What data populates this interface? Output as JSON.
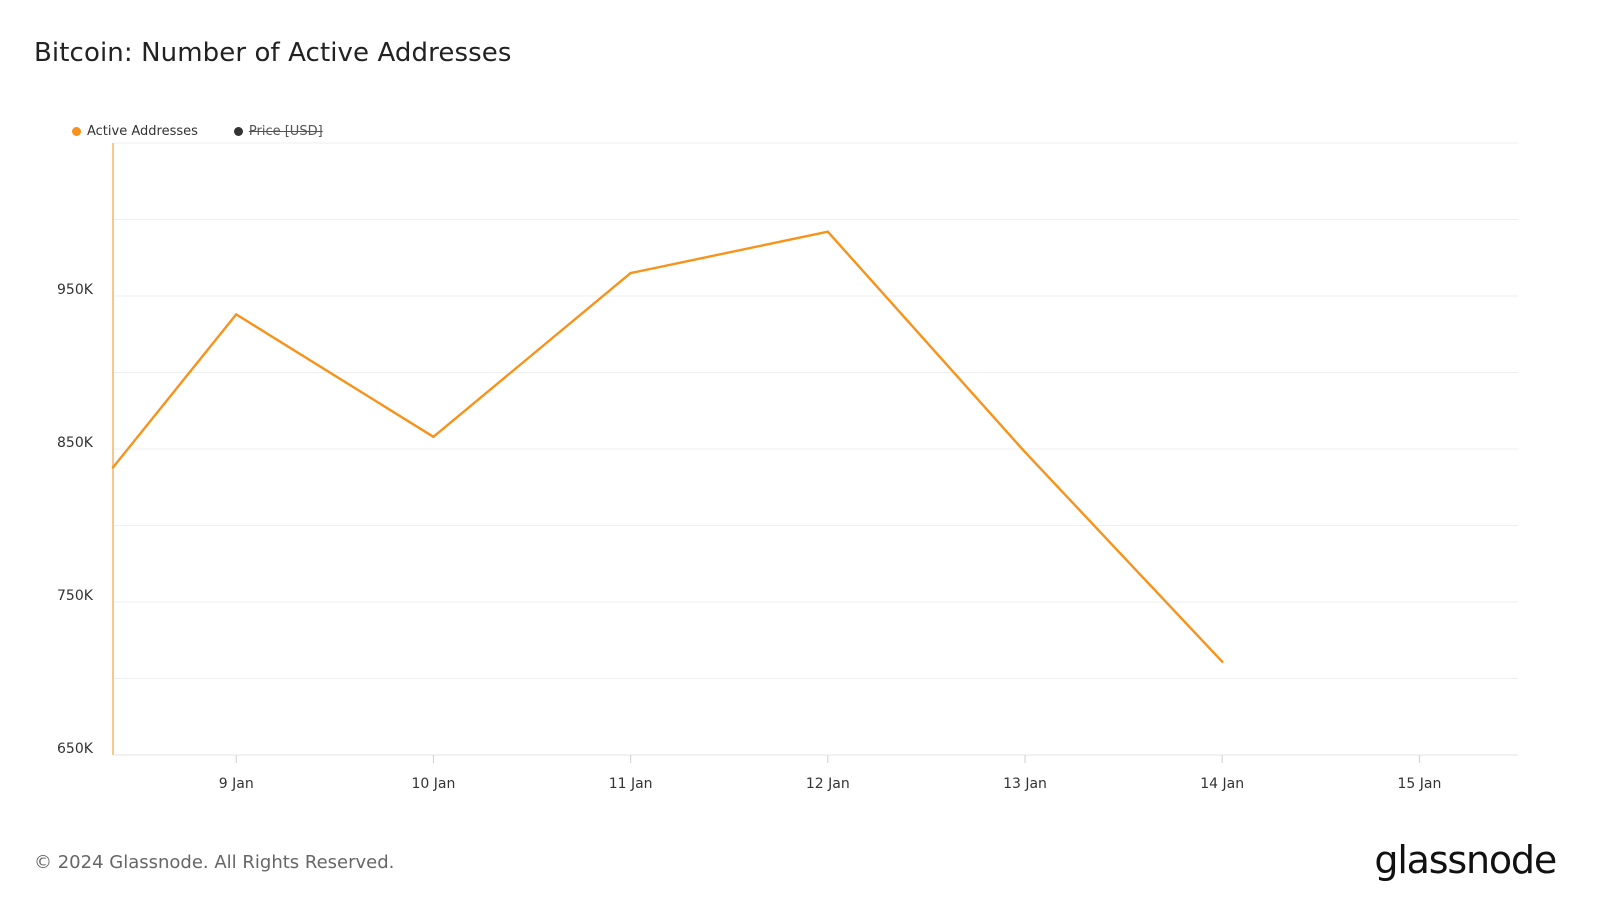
{
  "title": "Bitcoin: Number of Active Addresses",
  "legend": [
    {
      "label": "Active Addresses",
      "color": "#f7931a",
      "enabled": true
    },
    {
      "label": "Price [USD]",
      "color": "#333333",
      "enabled": false
    }
  ],
  "footer": "© 2024 Glassnode. All Rights Reserved.",
  "brand": "glassnode",
  "chart_data": {
    "type": "line",
    "title": "Bitcoin: Number of Active Addresses",
    "xlabel": "",
    "ylabel": "",
    "x_tick_labels": [
      "9 Jan",
      "10 Jan",
      "11 Jan",
      "12 Jan",
      "13 Jan",
      "14 Jan",
      "15 Jan"
    ],
    "y_tick_labels": [
      "650K",
      "750K",
      "850K",
      "950K"
    ],
    "y_ticks": [
      650000,
      750000,
      850000,
      950000
    ],
    "ylim": [
      650000,
      1050000
    ],
    "xlim": [
      "2024-01-08T09:00",
      "2024-01-15T12:00"
    ],
    "grid": true,
    "legend_position": "top-left",
    "series": [
      {
        "name": "Active Addresses",
        "color": "#f7931a",
        "points": [
          {
            "x": "2024-01-08T09:00",
            "y": 838000
          },
          {
            "x": "2024-01-09",
            "y": 938000
          },
          {
            "x": "2024-01-10",
            "y": 858000
          },
          {
            "x": "2024-01-11",
            "y": 965000
          },
          {
            "x": "2024-01-12",
            "y": 992000
          },
          {
            "x": "2024-01-13",
            "y": 848000
          },
          {
            "x": "2024-01-14",
            "y": 711000
          }
        ]
      }
    ]
  }
}
